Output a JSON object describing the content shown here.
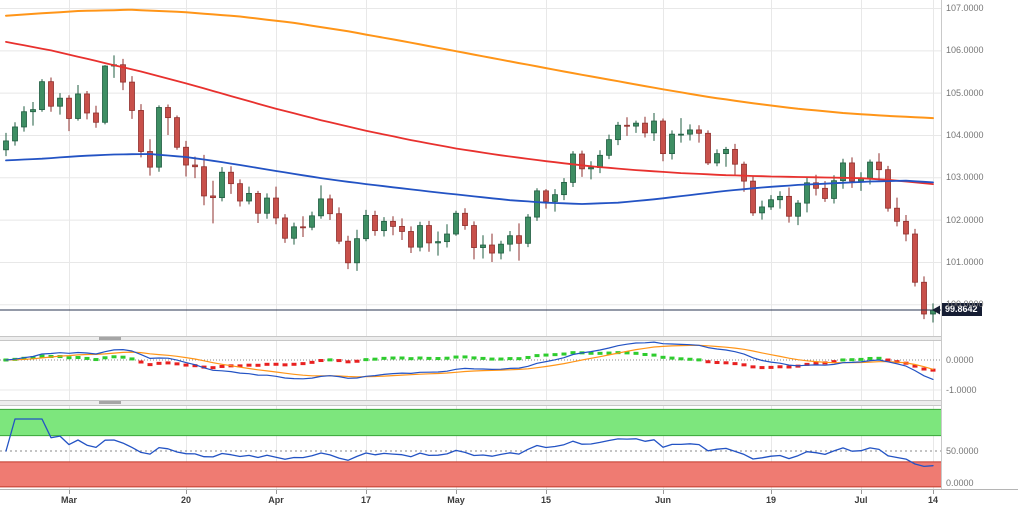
{
  "colors": {
    "background": "#ffffff",
    "grid": "#e8e8e8",
    "axis_text": "#757575",
    "date_text": "#3c3c3c",
    "candle_up": "#3e8e63",
    "candle_up_border": "#1f5c40",
    "candle_down": "#c8504a",
    "candle_down_border": "#8f2f2c",
    "price_line": "#2a3550",
    "badge_bg": "#161d33",
    "badge_text": "#ffffff",
    "separator_bg": "#ededed",
    "handle": "#a5a5a5"
  },
  "chart_data": [
    {
      "type": "candlestick",
      "title": "",
      "ylim": [
        99.25,
        107.19
      ],
      "yticks": [
        {
          "value": 107,
          "label": "107.0000"
        },
        {
          "value": 106,
          "label": "106.0000"
        },
        {
          "value": 105,
          "label": "105.0000"
        },
        {
          "value": 104,
          "label": "104.0000"
        },
        {
          "value": 103,
          "label": "103.0000"
        },
        {
          "value": 102,
          "label": "102.0000"
        },
        {
          "value": 101,
          "label": "101.0000"
        },
        {
          "value": 100,
          "label": "100.0000"
        }
      ],
      "x_labels": [
        {
          "label": "Mar",
          "index": 7
        },
        {
          "label": "20",
          "index": 20
        },
        {
          "label": "Apr",
          "index": 30
        },
        {
          "label": "17",
          "index": 40
        },
        {
          "label": "May",
          "index": 50
        },
        {
          "label": "15",
          "index": 60
        },
        {
          "label": "Jun",
          "index": 73
        },
        {
          "label": "19",
          "index": 85
        },
        {
          "label": "Jul",
          "index": 95
        },
        {
          "label": "14",
          "index": 103
        }
      ],
      "last_price": 99.8642,
      "last_price_label": "99.8642",
      "candles": [
        [
          103.65,
          104.05,
          103.5,
          103.86
        ],
        [
          103.86,
          104.3,
          103.75,
          104.19
        ],
        [
          104.19,
          104.68,
          104.08,
          104.55
        ],
        [
          104.55,
          104.78,
          104.22,
          104.6
        ],
        [
          104.6,
          105.32,
          104.55,
          105.26
        ],
        [
          105.26,
          105.36,
          104.55,
          104.68
        ],
        [
          104.68,
          104.99,
          104.48,
          104.87
        ],
        [
          104.87,
          104.94,
          104.09,
          104.39
        ],
        [
          104.39,
          105.18,
          104.34,
          104.97
        ],
        [
          104.97,
          105.04,
          104.37,
          104.52
        ],
        [
          104.52,
          104.69,
          104.17,
          104.3
        ],
        [
          104.3,
          105.65,
          104.25,
          105.63
        ],
        [
          105.63,
          105.88,
          105.35,
          105.66
        ],
        [
          105.66,
          105.8,
          105.06,
          105.25
        ],
        [
          105.25,
          105.39,
          104.38,
          104.58
        ],
        [
          104.58,
          104.73,
          103.47,
          103.61
        ],
        [
          103.61,
          103.9,
          103.04,
          103.24
        ],
        [
          103.24,
          104.7,
          103.13,
          104.65
        ],
        [
          104.65,
          104.72,
          104.0,
          104.41
        ],
        [
          104.41,
          104.46,
          103.65,
          103.71
        ],
        [
          103.71,
          103.86,
          103.02,
          103.29
        ],
        [
          103.29,
          103.49,
          102.98,
          103.25
        ],
        [
          103.25,
          103.53,
          102.34,
          102.56
        ],
        [
          102.56,
          102.92,
          101.91,
          102.52
        ],
        [
          102.52,
          103.24,
          102.43,
          103.12
        ],
        [
          103.12,
          103.26,
          102.61,
          102.85
        ],
        [
          102.85,
          102.95,
          102.31,
          102.44
        ],
        [
          102.44,
          102.78,
          102.36,
          102.62
        ],
        [
          102.62,
          102.68,
          101.92,
          102.15
        ],
        [
          102.15,
          102.62,
          102.02,
          102.51
        ],
        [
          102.51,
          102.78,
          101.89,
          102.04
        ],
        [
          102.04,
          102.13,
          101.45,
          101.56
        ],
        [
          101.56,
          101.93,
          101.41,
          101.83
        ],
        [
          101.83,
          102.08,
          101.59,
          101.82
        ],
        [
          101.82,
          102.19,
          101.75,
          102.09
        ],
        [
          102.09,
          102.81,
          102.02,
          102.49
        ],
        [
          102.49,
          102.59,
          101.99,
          102.14
        ],
        [
          102.14,
          102.29,
          101.42,
          101.49
        ],
        [
          101.49,
          101.62,
          100.83,
          100.98
        ],
        [
          100.98,
          101.76,
          100.79,
          101.55
        ],
        [
          101.55,
          102.23,
          101.49,
          102.1
        ],
        [
          102.1,
          102.21,
          101.62,
          101.74
        ],
        [
          101.74,
          102.06,
          101.6,
          101.96
        ],
        [
          101.96,
          102.08,
          101.63,
          101.84
        ],
        [
          101.84,
          102.03,
          101.52,
          101.72
        ],
        [
          101.72,
          101.84,
          101.21,
          101.35
        ],
        [
          101.35,
          101.95,
          101.25,
          101.86
        ],
        [
          101.86,
          101.97,
          101.24,
          101.45
        ],
        [
          101.45,
          101.72,
          101.15,
          101.48
        ],
        [
          101.48,
          101.89,
          101.34,
          101.66
        ],
        [
          101.66,
          102.21,
          101.62,
          102.15
        ],
        [
          102.15,
          102.27,
          101.76,
          101.86
        ],
        [
          101.86,
          101.96,
          101.06,
          101.34
        ],
        [
          101.34,
          101.63,
          101.08,
          101.4
        ],
        [
          101.4,
          101.67,
          101.0,
          101.21
        ],
        [
          101.21,
          101.5,
          101.06,
          101.42
        ],
        [
          101.42,
          101.73,
          101.25,
          101.62
        ],
        [
          101.62,
          101.91,
          101.03,
          101.44
        ],
        [
          101.44,
          102.13,
          101.35,
          102.06
        ],
        [
          102.06,
          102.74,
          101.97,
          102.68
        ],
        [
          102.68,
          102.72,
          102.26,
          102.43
        ],
        [
          102.43,
          102.72,
          102.19,
          102.59
        ],
        [
          102.59,
          102.98,
          102.46,
          102.88
        ],
        [
          102.88,
          103.62,
          102.77,
          103.55
        ],
        [
          103.55,
          103.63,
          103.01,
          103.2
        ],
        [
          103.2,
          103.38,
          102.95,
          103.23
        ],
        [
          103.23,
          103.64,
          103.1,
          103.52
        ],
        [
          103.52,
          104.01,
          103.43,
          103.89
        ],
        [
          103.89,
          104.31,
          103.76,
          104.23
        ],
        [
          104.23,
          104.42,
          103.98,
          104.21
        ],
        [
          104.21,
          104.34,
          104.05,
          104.28
        ],
        [
          104.28,
          104.43,
          103.94,
          104.05
        ],
        [
          104.05,
          104.52,
          103.86,
          104.33
        ],
        [
          104.33,
          104.39,
          103.38,
          103.56
        ],
        [
          103.56,
          104.11,
          103.42,
          104.02
        ],
        [
          104.02,
          104.4,
          103.82,
          104.02
        ],
        [
          104.02,
          104.25,
          103.87,
          104.12
        ],
        [
          104.12,
          104.23,
          103.82,
          104.04
        ],
        [
          104.04,
          104.11,
          103.29,
          103.34
        ],
        [
          103.34,
          103.66,
          103.26,
          103.56
        ],
        [
          103.56,
          103.72,
          103.25,
          103.66
        ],
        [
          103.66,
          103.79,
          103.04,
          103.31
        ],
        [
          103.31,
          103.37,
          102.66,
          102.91
        ],
        [
          102.91,
          103.02,
          102.09,
          102.16
        ],
        [
          102.16,
          102.45,
          102.0,
          102.3
        ],
        [
          102.3,
          102.58,
          102.23,
          102.47
        ],
        [
          102.47,
          102.67,
          102.26,
          102.55
        ],
        [
          102.55,
          102.76,
          101.93,
          102.08
        ],
        [
          102.08,
          102.46,
          101.87,
          102.39
        ],
        [
          102.39,
          103.02,
          102.17,
          102.87
        ],
        [
          102.87,
          103.06,
          102.57,
          102.74
        ],
        [
          102.74,
          102.91,
          102.42,
          102.5
        ],
        [
          102.5,
          103.05,
          102.38,
          102.92
        ],
        [
          102.92,
          103.44,
          102.73,
          103.34
        ],
        [
          103.34,
          103.47,
          102.75,
          102.91
        ],
        [
          102.91,
          103.12,
          102.68,
          102.98
        ],
        [
          102.98,
          103.42,
          102.83,
          103.36
        ],
        [
          103.36,
          103.57,
          102.93,
          103.18
        ],
        [
          103.18,
          103.27,
          102.19,
          102.27
        ],
        [
          102.27,
          102.52,
          101.84,
          101.96
        ],
        [
          101.96,
          102.11,
          101.49,
          101.66
        ],
        [
          101.66,
          101.78,
          100.42,
          100.52
        ],
        [
          100.52,
          100.66,
          99.65,
          99.77
        ],
        [
          99.77,
          100.02,
          99.57,
          99.86
        ]
      ],
      "series": [
        {
          "name": "ma-long",
          "color": "#ff9518",
          "width": 2,
          "points": [
            [
              0,
              106.82
            ],
            [
              8,
              106.93
            ],
            [
              14,
              106.96
            ],
            [
              20,
              106.9
            ],
            [
              26,
              106.8
            ],
            [
              32,
              106.65
            ],
            [
              38,
              106.45
            ],
            [
              44,
              106.22
            ],
            [
              50,
              105.98
            ],
            [
              56,
              105.74
            ],
            [
              62,
              105.5
            ],
            [
              68,
              105.27
            ],
            [
              73,
              105.08
            ],
            [
              78,
              104.9
            ],
            [
              83,
              104.75
            ],
            [
              88,
              104.62
            ],
            [
              93,
              104.52
            ],
            [
              98,
              104.45
            ],
            [
              103,
              104.4
            ]
          ]
        },
        {
          "name": "ma-mid",
          "color": "#e8312e",
          "width": 1.8,
          "points": [
            [
              0,
              106.2
            ],
            [
              5,
              106.0
            ],
            [
              10,
              105.75
            ],
            [
              15,
              105.5
            ],
            [
              20,
              105.22
            ],
            [
              25,
              104.92
            ],
            [
              30,
              104.62
            ],
            [
              35,
              104.35
            ],
            [
              40,
              104.1
            ],
            [
              45,
              103.88
            ],
            [
              50,
              103.68
            ],
            [
              55,
              103.52
            ],
            [
              60,
              103.38
            ],
            [
              65,
              103.26
            ],
            [
              70,
              103.17
            ],
            [
              75,
              103.1
            ],
            [
              80,
              103.05
            ],
            [
              85,
              103.02
            ],
            [
              90,
              103.0
            ],
            [
              95,
              102.98
            ],
            [
              98,
              102.94
            ],
            [
              101,
              102.88
            ],
            [
              103,
              102.84
            ]
          ]
        },
        {
          "name": "ma-short",
          "color": "#2353c4",
          "width": 1.8,
          "points": [
            [
              0,
              103.4
            ],
            [
              4,
              103.44
            ],
            [
              8,
              103.5
            ],
            [
              12,
              103.54
            ],
            [
              16,
              103.55
            ],
            [
              20,
              103.48
            ],
            [
              24,
              103.36
            ],
            [
              28,
              103.22
            ],
            [
              32,
              103.08
            ],
            [
              36,
              102.95
            ],
            [
              40,
              102.84
            ],
            [
              44,
              102.74
            ],
            [
              48,
              102.64
            ],
            [
              52,
              102.55
            ],
            [
              56,
              102.46
            ],
            [
              60,
              102.4
            ],
            [
              64,
              102.37
            ],
            [
              68,
              102.4
            ],
            [
              72,
              102.48
            ],
            [
              76,
              102.58
            ],
            [
              80,
              102.68
            ],
            [
              84,
              102.76
            ],
            [
              88,
              102.82
            ],
            [
              92,
              102.86
            ],
            [
              96,
              102.9
            ],
            [
              100,
              102.92
            ],
            [
              103,
              102.88
            ]
          ]
        }
      ]
    },
    {
      "type": "macd",
      "params": {
        "fast": 12,
        "slow": 26,
        "signal": 9
      },
      "ylim": [
        -1.333,
        0.633
      ],
      "yticks": [
        {
          "value": 0,
          "label": "0.0000"
        },
        {
          "value": -1,
          "label": "-1.0000"
        }
      ],
      "colors": {
        "macd": "#2353c4",
        "signal": "#ff9518",
        "hist_up": "#2ecc2e",
        "hist_down": "#e82020"
      }
    },
    {
      "type": "rsi",
      "params": {
        "period": 14
      },
      "ylim": [
        -9.4,
        120.3
      ],
      "yticks": [
        {
          "value": 50,
          "label": "50.0000"
        },
        {
          "value": 0,
          "label": "0.0000"
        }
      ],
      "bands": [
        {
          "from": 74,
          "to": 115,
          "color": "#7de67d",
          "edge": "#3aa53a"
        },
        {
          "from": -6,
          "to": 33,
          "color": "#ef7b72",
          "edge": "#c0392b"
        }
      ],
      "line_color": "#2353c4",
      "midline": 50
    }
  ]
}
